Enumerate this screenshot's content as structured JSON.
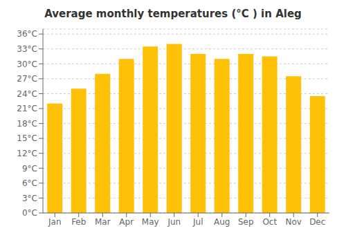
{
  "chart_data": {
    "type": "bar",
    "title": "Average monthly temperatures (°C ) in Aleg",
    "categories": [
      "Jan",
      "Feb",
      "Mar",
      "Apr",
      "May",
      "Jun",
      "Jul",
      "Aug",
      "Sep",
      "Oct",
      "Nov",
      "Dec"
    ],
    "values": [
      22,
      25,
      28,
      31,
      33.5,
      34,
      32,
      31,
      32,
      31.5,
      27.5,
      23.5
    ],
    "color": "#FFC107",
    "ylim": [
      0,
      37
    ],
    "yticks": [
      {
        "value": 0,
        "label": "0°C"
      },
      {
        "value": 3,
        "label": "3°C"
      },
      {
        "value": 6,
        "label": "6°C"
      },
      {
        "value": 9,
        "label": "9°C"
      },
      {
        "value": 12,
        "label": "12°C"
      },
      {
        "value": 15,
        "label": "15°C"
      },
      {
        "value": 18,
        "label": "18°C"
      },
      {
        "value": 21,
        "label": "21°C"
      },
      {
        "value": 24,
        "label": "24°C"
      },
      {
        "value": 27,
        "label": "27°C"
      },
      {
        "value": 30,
        "label": "30°C"
      },
      {
        "value": 33,
        "label": "33°C"
      },
      {
        "value": 36,
        "label": "36°C"
      }
    ],
    "grid": true
  }
}
